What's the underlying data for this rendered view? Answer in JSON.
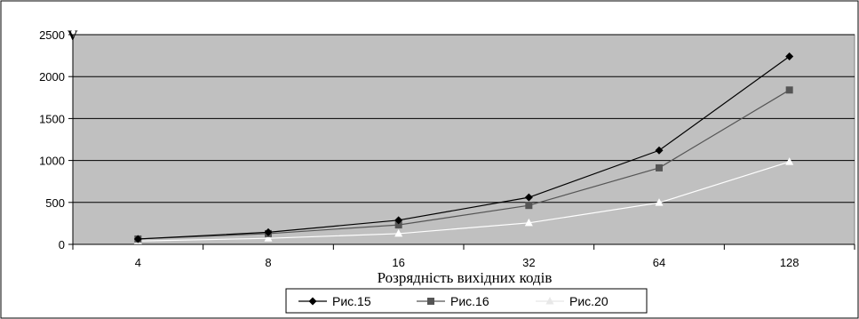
{
  "chart_data": {
    "type": "line",
    "title": "",
    "xlabel": "Розрядність вихідних кодів",
    "ylabel": "V",
    "categories": [
      "4",
      "8",
      "16",
      "32",
      "64",
      "128"
    ],
    "ylim": [
      0,
      2500
    ],
    "yticks": [
      0,
      500,
      1000,
      1500,
      2000,
      2500
    ],
    "grid": true,
    "plot_background": "#c0c0c0",
    "legend_position": "bottom",
    "series": [
      {
        "name": "Рис.15",
        "values": [
          64,
          144,
          288,
          560,
          1120,
          2240
        ],
        "color": "#000000",
        "marker": "diamond"
      },
      {
        "name": "Рис.16",
        "values": [
          64,
          128,
          232,
          464,
          912,
          1840
        ],
        "color": "#555555",
        "marker": "square"
      },
      {
        "name": "Рис.20",
        "values": [
          40,
          72,
          128,
          256,
          496,
          984
        ],
        "color": "#ffffff",
        "marker": "triangle"
      }
    ]
  }
}
